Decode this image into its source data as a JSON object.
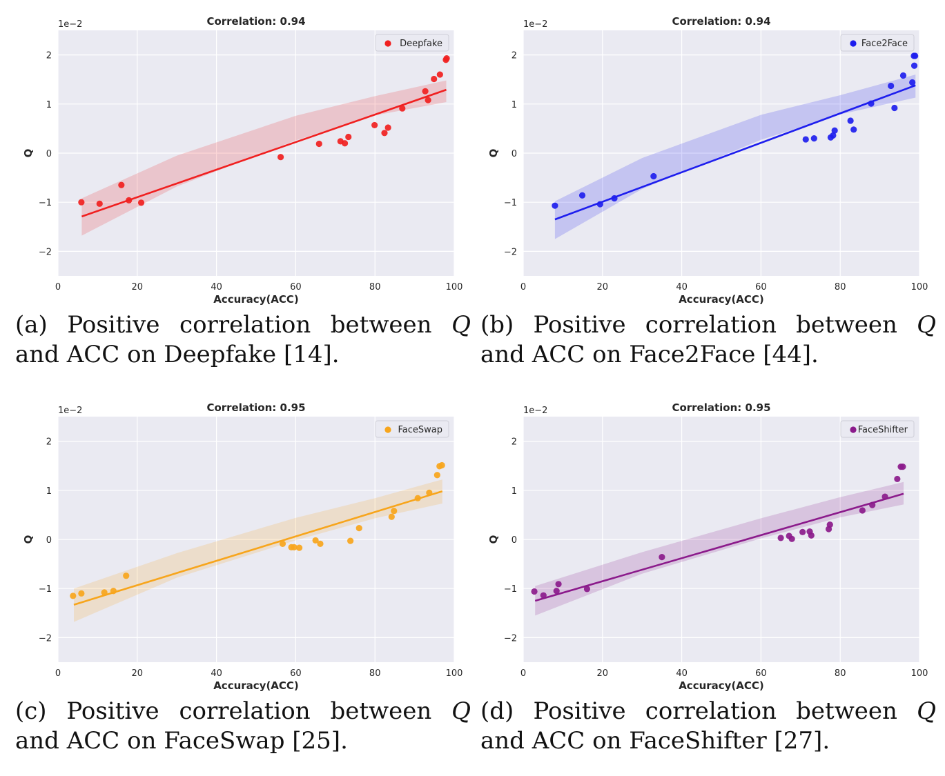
{
  "charts": [
    {
      "id": "a",
      "caption": {
        "pre": "(a) Positive correlation between ",
        "q": "Q",
        "mid": " and ACC on Deepfake ",
        "ref": "[14]",
        "post": "."
      },
      "chart_data": {
        "type": "scatter",
        "title": "Correlation: 0.94",
        "xlabel": "Accuracy(ACC)",
        "ylabel": "Q",
        "offset_text": "1e−2",
        "xlim": [
          0,
          100
        ],
        "ylim": [
          -2.5,
          2.5
        ],
        "xticks": [
          0,
          20,
          40,
          60,
          80,
          100
        ],
        "yticks": [
          -2,
          -1,
          0,
          1,
          2
        ],
        "ytick_labels": [
          "−2",
          "−1",
          "0",
          "1",
          "2"
        ],
        "grid": true,
        "legend": "top-right",
        "series": [
          {
            "name": "Deepfake",
            "color": "#f02020",
            "x": [
              5.9,
              10.5,
              16.0,
              17.9,
              21.0,
              56.2,
              65.9,
              71.3,
              72.4,
              73.3,
              79.9,
              82.4,
              83.3,
              86.9,
              92.7,
              93.4,
              94.9,
              96.4,
              97.9,
              98.1
            ],
            "y": [
              -1.0,
              -1.03,
              -0.65,
              -0.96,
              -1.01,
              -0.08,
              0.19,
              0.24,
              0.2,
              0.33,
              0.57,
              0.41,
              0.52,
              0.91,
              1.26,
              1.08,
              1.51,
              1.6,
              1.9,
              1.93
            ],
            "fit": {
              "x": [
                6,
                98
              ],
              "y": [
                -1.29,
                1.29
              ]
            },
            "band_upper": {
              "x": [
                6,
                30,
                60,
                80,
                98
              ],
              "y": [
                -0.92,
                -0.05,
                0.76,
                1.16,
                1.48
              ]
            },
            "band_lower": {
              "x": [
                6,
                30,
                60,
                80,
                98
              ],
              "y": [
                -1.68,
                -0.68,
                0.26,
                0.77,
                1.04
              ]
            }
          }
        ]
      }
    },
    {
      "id": "b",
      "caption": {
        "pre": "(b) Positive correlation between ",
        "q": "Q",
        "mid": " and ACC on Face2Face ",
        "ref": "[44]",
        "post": "."
      },
      "chart_data": {
        "type": "scatter",
        "title": "Correlation: 0.94",
        "xlabel": "Accuracy(ACC)",
        "ylabel": "Q",
        "offset_text": "1e−2",
        "xlim": [
          0,
          100
        ],
        "ylim": [
          -2.5,
          2.5
        ],
        "xticks": [
          0,
          20,
          40,
          60,
          80,
          100
        ],
        "yticks": [
          -2,
          -1,
          0,
          1,
          2
        ],
        "ytick_labels": [
          "−2",
          "−1",
          "0",
          "1",
          "2"
        ],
        "grid": true,
        "legend": "top-right",
        "series": [
          {
            "name": "Face2Face",
            "color": "#1e1eee",
            "x": [
              8.0,
              14.9,
              19.4,
              23.0,
              32.9,
              71.3,
              73.4,
              77.6,
              78.2,
              78.6,
              82.6,
              83.4,
              87.8,
              92.8,
              93.7,
              95.9,
              98.2,
              98.6,
              98.9,
              98.7
            ],
            "y": [
              -1.07,
              -0.86,
              -1.04,
              -0.92,
              -0.47,
              0.28,
              0.3,
              0.32,
              0.36,
              0.46,
              0.66,
              0.48,
              1.01,
              1.37,
              0.92,
              1.58,
              1.44,
              1.98,
              1.98,
              1.78
            ],
            "fit": {
              "x": [
                8,
                99
              ],
              "y": [
                -1.35,
                1.38
              ]
            },
            "band_upper": {
              "x": [
                8,
                30,
                60,
                80,
                99
              ],
              "y": [
                -0.98,
                -0.1,
                0.78,
                1.18,
                1.6
              ]
            },
            "band_lower": {
              "x": [
                8,
                30,
                60,
                80,
                99
              ],
              "y": [
                -1.75,
                -0.73,
                0.27,
                0.79,
                1.13
              ]
            }
          }
        ]
      }
    },
    {
      "id": "c",
      "caption": {
        "pre": "(c) Positive correlation between ",
        "q": "Q",
        "mid": " and ACC on FaceSwap ",
        "ref": "[25]",
        "post": "."
      },
      "chart_data": {
        "type": "scatter",
        "title": "Correlation: 0.95",
        "xlabel": "Accuracy(ACC)",
        "ylabel": "Q",
        "offset_text": "1e−2",
        "xlim": [
          0,
          100
        ],
        "ylim": [
          -2.5,
          2.5
        ],
        "xticks": [
          0,
          20,
          40,
          60,
          80,
          100
        ],
        "yticks": [
          -2,
          -1,
          0,
          1,
          2
        ],
        "ytick_labels": [
          "−2",
          "−1",
          "0",
          "1",
          "2"
        ],
        "grid": true,
        "legend": "top-right",
        "series": [
          {
            "name": "FaceSwap",
            "color": "#f7a51c",
            "x": [
              3.8,
              5.9,
              11.7,
              14.0,
              17.2,
              56.7,
              58.9,
              59.6,
              60.9,
              65.0,
              66.2,
              73.8,
              76.0,
              84.2,
              84.8,
              90.8,
              93.7,
              95.7,
              96.3,
              96.9
            ],
            "y": [
              -1.15,
              -1.1,
              -1.08,
              -1.05,
              -0.74,
              -0.09,
              -0.16,
              -0.16,
              -0.17,
              -0.02,
              -0.09,
              -0.03,
              0.23,
              0.46,
              0.58,
              0.84,
              0.95,
              1.31,
              1.49,
              1.51
            ],
            "fit": {
              "x": [
                4,
                97
              ],
              "y": [
                -1.33,
                0.98
              ]
            },
            "band_upper": {
              "x": [
                4,
                30,
                60,
                80,
                97
              ],
              "y": [
                -1.0,
                -0.28,
                0.44,
                0.84,
                1.22
              ]
            },
            "band_lower": {
              "x": [
                4,
                30,
                60,
                80,
                97
              ],
              "y": [
                -1.68,
                -0.78,
                -0.02,
                0.43,
                0.73
              ]
            }
          }
        ]
      }
    },
    {
      "id": "d",
      "caption": {
        "pre": "(d) Positive correlation between ",
        "q": "Q",
        "mid": " and ACC on FaceShifter ",
        "ref": "[27]",
        "post": "."
      },
      "chart_data": {
        "type": "scatter",
        "title": "Correlation: 0.95",
        "xlabel": "Accuracy(ACC)",
        "ylabel": "Q",
        "offset_text": "1e−2",
        "xlim": [
          0,
          100
        ],
        "ylim": [
          -2.5,
          2.5
        ],
        "xticks": [
          0,
          20,
          40,
          60,
          80,
          100
        ],
        "yticks": [
          -2,
          -1,
          0,
          1,
          2
        ],
        "ytick_labels": [
          "−2",
          "−1",
          "0",
          "1",
          "2"
        ],
        "grid": true,
        "legend": "top-right",
        "series": [
          {
            "name": "FaceShifter",
            "color": "#8b1a8b",
            "x": [
              2.8,
              5.1,
              8.4,
              8.9,
              16.1,
              35.0,
              65.0,
              67.1,
              67.8,
              70.5,
              72.3,
              72.7,
              77.1,
              77.4,
              85.6,
              88.1,
              91.3,
              94.4,
              95.3,
              95.8
            ],
            "y": [
              -1.06,
              -1.14,
              -1.05,
              -0.91,
              -1.01,
              -0.36,
              0.03,
              0.07,
              0.01,
              0.15,
              0.16,
              0.08,
              0.21,
              0.3,
              0.59,
              0.7,
              0.87,
              1.23,
              1.48,
              1.48
            ],
            "fit": {
              "x": [
                3,
                96
              ],
              "y": [
                -1.25,
                0.93
              ]
            },
            "band_upper": {
              "x": [
                3,
                30,
                60,
                80,
                96
              ],
              "y": [
                -0.95,
                -0.26,
                0.43,
                0.86,
                1.17
              ]
            },
            "band_lower": {
              "x": [
                3,
                30,
                60,
                80,
                96
              ],
              "y": [
                -1.55,
                -0.7,
                0.02,
                0.45,
                0.71
              ]
            }
          }
        ]
      }
    }
  ]
}
